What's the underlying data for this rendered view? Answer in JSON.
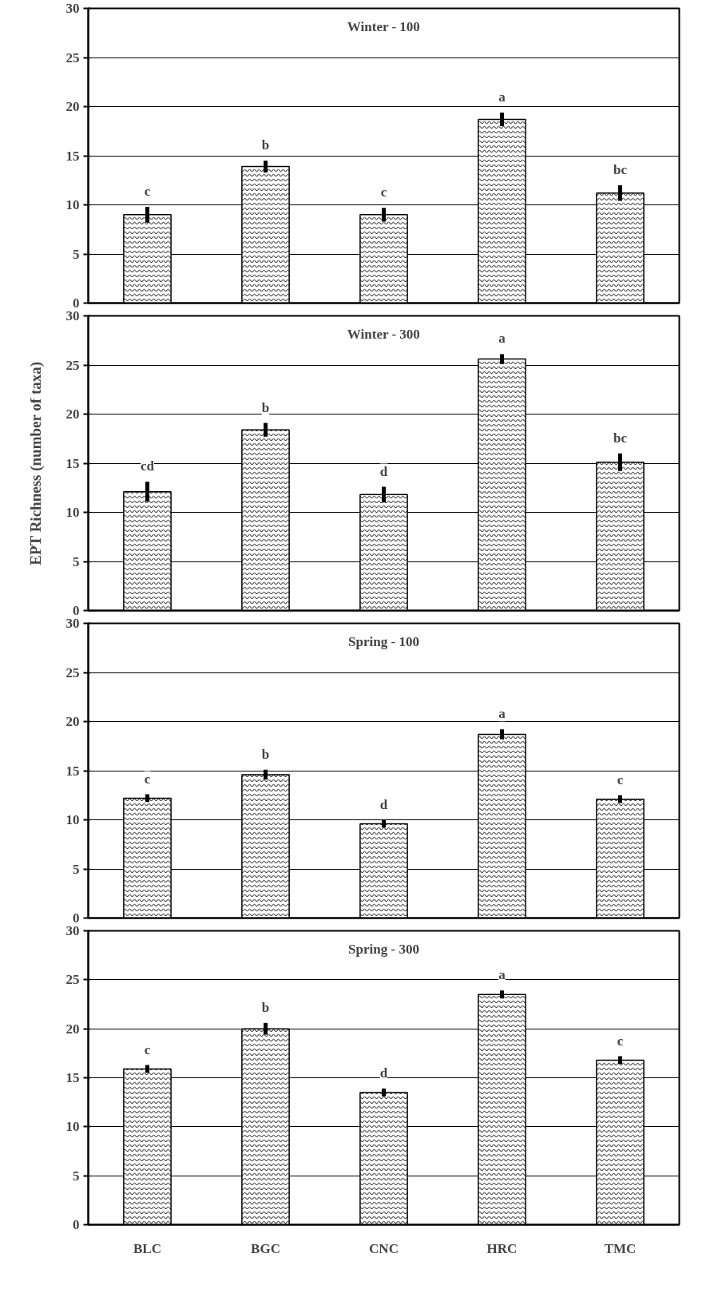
{
  "chart_data": [
    {
      "type": "bar",
      "title": "Winter - 100",
      "categories": [
        null,
        null,
        null,
        null,
        null
      ],
      "series": [
        {
          "color": "#000000",
          "values": [
            9.0,
            13.9,
            9.0,
            18.7,
            11.2
          ],
          "errors": [
            0.8,
            0.6,
            0.7,
            0.7,
            0.8
          ]
        }
      ],
      "ylim": [
        0,
        30
      ],
      "yticks": [
        0,
        5,
        10,
        15,
        20,
        25,
        30
      ],
      "grid": "y",
      "annotations": [
        "c",
        "b",
        "c",
        "a",
        "bc"
      ]
    },
    {
      "type": "bar",
      "title": "Winter - 300",
      "ylabel": "EPT Richness (number of taxa)",
      "categories": [
        null,
        null,
        null,
        null,
        null
      ],
      "series": [
        {
          "color": "#000000",
          "values": [
            12.1,
            18.4,
            11.8,
            25.6,
            15.1
          ],
          "errors": [
            1.0,
            0.7,
            0.8,
            0.5,
            0.9
          ]
        }
      ],
      "ylim": [
        0,
        30
      ],
      "yticks": [
        0,
        5,
        10,
        15,
        20,
        25,
        30
      ],
      "grid": "y",
      "annotations": [
        "cd",
        "b",
        "d",
        "a",
        "bc"
      ]
    },
    {
      "type": "bar",
      "title": "Spring - 100",
      "categories": [
        null,
        null,
        null,
        null,
        null
      ],
      "series": [
        {
          "color": "#000000",
          "values": [
            12.2,
            14.6,
            9.6,
            18.7,
            12.1
          ],
          "errors": [
            0.4,
            0.5,
            0.4,
            0.5,
            0.4
          ]
        }
      ],
      "ylim": [
        0,
        30
      ],
      "yticks": [
        0,
        5,
        10,
        15,
        20,
        25,
        30
      ],
      "grid": "y",
      "annotations": [
        "c",
        "b",
        "d",
        "a",
        "c"
      ]
    },
    {
      "type": "bar",
      "title": "Spring - 300",
      "categories": [
        "BLC",
        "BGC",
        "CNC",
        "HRC",
        "TMC"
      ],
      "series": [
        {
          "color": "#000000",
          "values": [
            15.9,
            20.0,
            13.5,
            23.5,
            16.8
          ],
          "errors": [
            0.4,
            0.6,
            0.4,
            0.4,
            0.4
          ]
        }
      ],
      "ylim": [
        0,
        30
      ],
      "yticks": [
        0,
        5,
        10,
        15,
        20,
        25,
        30
      ],
      "grid": "y",
      "annotations": [
        "c",
        "b",
        "d",
        "a",
        "c"
      ]
    }
  ]
}
